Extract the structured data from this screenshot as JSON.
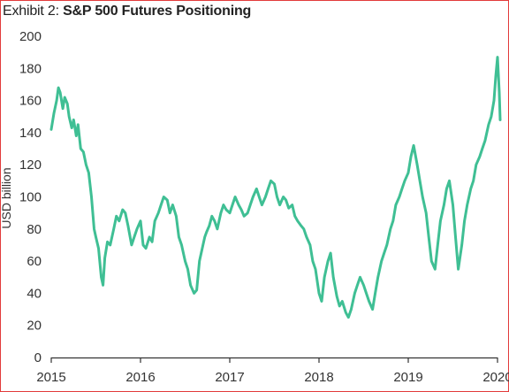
{
  "header": {
    "exhibit_label": "Exhibit 2:",
    "title": "S&P 500 Futures Positioning"
  },
  "chart_data": {
    "type": "line",
    "title": "S&P 500 Futures Positioning",
    "xlabel": "",
    "ylabel": "USD billion",
    "xlim": [
      2015.0,
      2020.0
    ],
    "ylim": [
      0,
      200
    ],
    "y_ticks": [
      0,
      20,
      40,
      60,
      80,
      100,
      120,
      140,
      160,
      180,
      200
    ],
    "x_ticks": [
      2015,
      2016,
      2017,
      2018,
      2019,
      2020
    ],
    "x_tick_labels": [
      "2015",
      "2016",
      "2017",
      "2018",
      "2019",
      "2020"
    ],
    "grid": false,
    "line_color": "#3fbf94",
    "series": [
      {
        "x": [
          2015.0,
          2015.03,
          2015.06,
          2015.08,
          2015.1,
          2015.13,
          2015.15,
          2015.18,
          2015.2,
          2015.23,
          2015.25,
          2015.28,
          2015.3,
          2015.33,
          2015.36,
          2015.39,
          2015.42,
          2015.45,
          2015.48,
          2015.5,
          2015.53,
          2015.56,
          2015.58,
          2015.6,
          2015.63,
          2015.66,
          2015.7,
          2015.73,
          2015.76,
          2015.8,
          2015.83,
          2015.86,
          2015.9,
          2015.93,
          2015.96,
          2016.0,
          2016.03,
          2016.06,
          2016.1,
          2016.13,
          2016.16,
          2016.2,
          2016.23,
          2016.26,
          2016.3,
          2016.33,
          2016.36,
          2016.4,
          2016.43,
          2016.46,
          2016.5,
          2016.53,
          2016.56,
          2016.6,
          2016.63,
          2016.66,
          2016.7,
          2016.72,
          2016.74,
          2016.77,
          2016.8,
          2016.83,
          2016.86,
          2016.9,
          2016.93,
          2016.96,
          2017.0,
          2017.03,
          2017.06,
          2017.1,
          2017.13,
          2017.16,
          2017.2,
          2017.23,
          2017.26,
          2017.3,
          2017.33,
          2017.36,
          2017.4,
          2017.43,
          2017.46,
          2017.5,
          2017.53,
          2017.56,
          2017.6,
          2017.63,
          2017.66,
          2017.7,
          2017.73,
          2017.76,
          2017.8,
          2017.83,
          2017.86,
          2017.9,
          2017.93,
          2017.96,
          2018.0,
          2018.03,
          2018.06,
          2018.1,
          2018.13,
          2018.16,
          2018.2,
          2018.23,
          2018.26,
          2018.3,
          2018.33,
          2018.36,
          2018.4,
          2018.43,
          2018.46,
          2018.5,
          2018.53,
          2018.56,
          2018.6,
          2018.63,
          2018.66,
          2018.7,
          2018.73,
          2018.76,
          2018.8,
          2018.83,
          2018.86,
          2018.9,
          2018.93,
          2018.96,
          2019.0,
          2019.03,
          2019.06,
          2019.1,
          2019.13,
          2019.16,
          2019.2,
          2019.23,
          2019.26,
          2019.3,
          2019.33,
          2019.36,
          2019.4,
          2019.43,
          2019.46,
          2019.5,
          2019.53,
          2019.56,
          2019.6,
          2019.63,
          2019.66,
          2019.7,
          2019.73,
          2019.76,
          2019.8,
          2019.83,
          2019.86,
          2019.9,
          2019.93,
          2019.96,
          2019.98,
          2020.0,
          2020.02,
          2020.03
        ],
        "values": [
          142,
          152,
          160,
          168,
          165,
          155,
          162,
          158,
          150,
          143,
          148,
          138,
          145,
          130,
          128,
          120,
          115,
          100,
          80,
          75,
          68,
          50,
          45,
          62,
          72,
          70,
          80,
          88,
          85,
          92,
          90,
          82,
          70,
          75,
          80,
          85,
          70,
          68,
          75,
          72,
          85,
          90,
          95,
          100,
          98,
          90,
          95,
          88,
          75,
          70,
          60,
          55,
          45,
          40,
          42,
          60,
          70,
          75,
          78,
          82,
          88,
          85,
          80,
          90,
          95,
          92,
          90,
          95,
          100,
          95,
          92,
          88,
          90,
          95,
          100,
          105,
          100,
          95,
          100,
          105,
          110,
          108,
          100,
          95,
          100,
          98,
          93,
          95,
          88,
          85,
          82,
          80,
          75,
          70,
          60,
          55,
          40,
          35,
          50,
          60,
          65,
          50,
          38,
          32,
          35,
          28,
          25,
          30,
          40,
          45,
          50,
          45,
          40,
          35,
          30,
          40,
          50,
          60,
          65,
          70,
          80,
          85,
          95,
          100,
          105,
          110,
          115,
          125,
          132,
          120,
          110,
          100,
          90,
          75,
          60,
          55,
          70,
          85,
          95,
          105,
          110,
          95,
          75,
          55,
          70,
          85,
          95,
          105,
          110,
          120,
          125,
          130,
          135,
          145,
          150,
          160,
          175,
          187,
          165,
          148
        ]
      }
    ]
  }
}
